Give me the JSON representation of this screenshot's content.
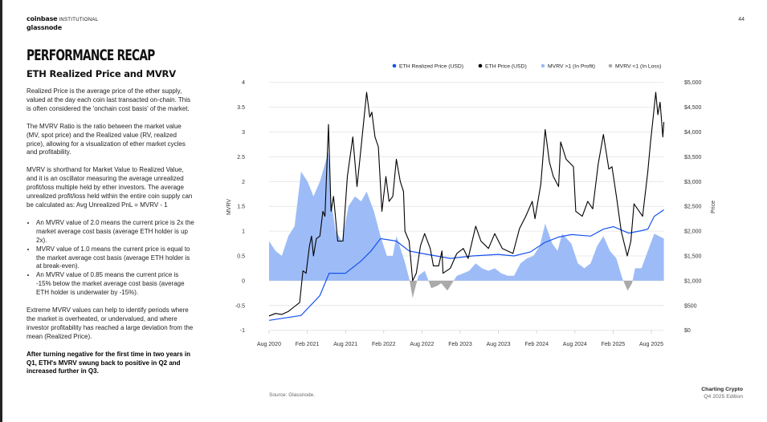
{
  "header": {
    "logo_coinbase": "coinbase",
    "logo_institutional": "INSTITUTIONAL",
    "logo_glassnode": "glassnode",
    "page_number": "44"
  },
  "section_title": "PERFORMANCE RECAP",
  "subtitle": "ETH Realized Price and MVRV",
  "body": {
    "p1": "Realized Price is the average price of the ether supply, valued at the day each coin last transacted on-chain. This is often considered the 'onchain cost basis' of the market.",
    "p2": "The MVRV Ratio is the ratio between the market value (MV, spot price) and the Realized value (RV, realized price), allowing for a visualization of ether market cycles and profitability.",
    "p3": "MVRV is shorthand for Market Value to Realized Value, and it is an oscillator measuring the average unrealized profit/loss multiple held by ether investors. The average unrealized profit/loss held within the entire coin supply can be calculated as: Avg Unrealized PnL = MVRV - 1",
    "bullets": [
      "An MVRV value of 2.0 means the current price is 2x the market average cost basis (average ETH holder is up 2x).",
      "MVRV value of 1.0 means the current price is equal to the market average cost basis (average ETH holder is at break-even).",
      "An MVRV value of 0.85 means the current price is -15% below the market average cost basis (average ETH holder is underwater by -15%)."
    ],
    "p4": "Extreme MVRV values can help to identify periods where the market is overheated, or undervalued, and where investor profitability has reached a large deviation from the mean (Realized Price).",
    "conclusion": "After turning negative for the first time in two years in Q1, ETH's MVRV swung back to positive in Q2 and increased further in Q3."
  },
  "footer": {
    "source": "Source: Glassnode.",
    "brand": "Charting Crypto",
    "edition": "Q4 2025 Edition"
  },
  "chart_data": {
    "type": "line",
    "title": "",
    "ylabel": "MVRV",
    "y2label": "Price",
    "ylim": [
      -1,
      4
    ],
    "y2lim": [
      0,
      5000
    ],
    "yticks": [
      "4",
      "3.5",
      "3",
      "2.5",
      "2",
      "1.5",
      "1",
      "0.5",
      "0",
      "-0.5",
      "-1"
    ],
    "y2ticks": [
      "$5,000",
      "$4,500",
      "$4,000",
      "$3,500",
      "$3,000",
      "$2,500",
      "$2,000",
      "$1,500",
      "$1,000",
      "$500",
      "$0"
    ],
    "xticks": [
      "Aug 2020",
      "Feb 2021",
      "Aug 2021",
      "Feb 2022",
      "Aug 2022",
      "Feb 2023",
      "Aug 2023",
      "Feb 2024",
      "Aug 2024",
      "Feb 2025",
      "Aug 2025"
    ],
    "xlim": [
      "2020-08-01",
      "2025-10-01"
    ],
    "grid": true,
    "legend_position": "top-right",
    "legend": [
      {
        "name": "ETH Realized Price (USD)",
        "color": "#1652f0"
      },
      {
        "name": "ETH Price (USD)",
        "color": "#000000"
      },
      {
        "name": "MVRV >1 (In Profit)",
        "color": "#9dbcf7"
      },
      {
        "name": "MVRV <1 (In Loss)",
        "color": "#aaaaaa"
      }
    ],
    "series": [
      {
        "name": "ETH Price (USD)",
        "axis": "right",
        "points": [
          [
            "2020-08-01",
            290
          ],
          [
            "2020-09-01",
            340
          ],
          [
            "2020-10-01",
            320
          ],
          [
            "2020-11-01",
            380
          ],
          [
            "2020-12-01",
            480
          ],
          [
            "2020-12-25",
            560
          ],
          [
            "2021-01-10",
            1200
          ],
          [
            "2021-01-25",
            1150
          ],
          [
            "2021-02-10",
            1700
          ],
          [
            "2021-02-20",
            1900
          ],
          [
            "2021-03-01",
            1500
          ],
          [
            "2021-03-15",
            1850
          ],
          [
            "2021-04-01",
            1900
          ],
          [
            "2021-04-15",
            2400
          ],
          [
            "2021-04-25",
            2300
          ],
          [
            "2021-05-12",
            4150
          ],
          [
            "2021-05-24",
            2400
          ],
          [
            "2021-06-05",
            2700
          ],
          [
            "2021-06-25",
            1800
          ],
          [
            "2021-07-20",
            1800
          ],
          [
            "2021-08-10",
            3100
          ],
          [
            "2021-09-05",
            3900
          ],
          [
            "2021-09-25",
            2900
          ],
          [
            "2021-10-10",
            3500
          ],
          [
            "2021-11-10",
            4800
          ],
          [
            "2021-11-25",
            4300
          ],
          [
            "2021-12-05",
            4400
          ],
          [
            "2021-12-20",
            3900
          ],
          [
            "2022-01-05",
            3700
          ],
          [
            "2022-01-22",
            2400
          ],
          [
            "2022-02-10",
            3100
          ],
          [
            "2022-02-25",
            2600
          ],
          [
            "2022-03-15",
            2700
          ],
          [
            "2022-04-01",
            3450
          ],
          [
            "2022-04-20",
            3000
          ],
          [
            "2022-05-05",
            2800
          ],
          [
            "2022-05-12",
            2000
          ],
          [
            "2022-06-01",
            1800
          ],
          [
            "2022-06-18",
            1000
          ],
          [
            "2022-07-05",
            1150
          ],
          [
            "2022-07-25",
            1700
          ],
          [
            "2022-08-14",
            1950
          ],
          [
            "2022-09-10",
            1650
          ],
          [
            "2022-09-25",
            1300
          ],
          [
            "2022-10-20",
            1300
          ],
          [
            "2022-11-05",
            1600
          ],
          [
            "2022-11-10",
            1150
          ],
          [
            "2022-12-15",
            1250
          ],
          [
            "2023-01-15",
            1550
          ],
          [
            "2023-02-15",
            1650
          ],
          [
            "2023-03-10",
            1450
          ],
          [
            "2023-04-15",
            2100
          ],
          [
            "2023-05-10",
            1800
          ],
          [
            "2023-06-15",
            1650
          ],
          [
            "2023-07-15",
            1950
          ],
          [
            "2023-08-20",
            1650
          ],
          [
            "2023-10-10",
            1550
          ],
          [
            "2023-11-10",
            2050
          ],
          [
            "2023-12-10",
            2300
          ],
          [
            "2024-01-10",
            2600
          ],
          [
            "2024-01-23",
            2250
          ],
          [
            "2024-02-20",
            2950
          ],
          [
            "2024-03-12",
            4050
          ],
          [
            "2024-04-01",
            3400
          ],
          [
            "2024-04-20",
            3100
          ],
          [
            "2024-05-15",
            2900
          ],
          [
            "2024-05-25",
            3800
          ],
          [
            "2024-06-20",
            3450
          ],
          [
            "2024-07-25",
            3300
          ],
          [
            "2024-08-05",
            2400
          ],
          [
            "2024-09-05",
            2300
          ],
          [
            "2024-10-01",
            2600
          ],
          [
            "2024-10-25",
            2450
          ],
          [
            "2024-11-20",
            3350
          ],
          [
            "2024-12-15",
            3950
          ],
          [
            "2025-01-10",
            3250
          ],
          [
            "2025-01-25",
            3300
          ],
          [
            "2025-02-15",
            2700
          ],
          [
            "2025-03-10",
            2000
          ],
          [
            "2025-04-08",
            1500
          ],
          [
            "2025-04-25",
            1800
          ],
          [
            "2025-05-10",
            2550
          ],
          [
            "2025-06-20",
            2300
          ],
          [
            "2025-07-15",
            3200
          ],
          [
            "2025-07-28",
            3800
          ],
          [
            "2025-08-10",
            4300
          ],
          [
            "2025-08-22",
            4800
          ],
          [
            "2025-09-01",
            4350
          ],
          [
            "2025-09-12",
            4600
          ],
          [
            "2025-09-25",
            3900
          ],
          [
            "2025-09-30",
            4200
          ]
        ]
      },
      {
        "name": "ETH Realized Price (USD)",
        "axis": "right",
        "points": [
          [
            "2020-08-01",
            200
          ],
          [
            "2021-01-01",
            300
          ],
          [
            "2021-04-01",
            700
          ],
          [
            "2021-05-15",
            1150
          ],
          [
            "2021-08-01",
            1150
          ],
          [
            "2021-10-15",
            1400
          ],
          [
            "2021-12-01",
            1600
          ],
          [
            "2022-01-15",
            1850
          ],
          [
            "2022-04-01",
            1800
          ],
          [
            "2022-06-01",
            1600
          ],
          [
            "2022-08-01",
            1550
          ],
          [
            "2022-12-15",
            1450
          ],
          [
            "2023-04-01",
            1500
          ],
          [
            "2023-08-01",
            1530
          ],
          [
            "2023-10-15",
            1500
          ],
          [
            "2024-01-01",
            1580
          ],
          [
            "2024-03-10",
            1770
          ],
          [
            "2024-05-15",
            1880
          ],
          [
            "2024-07-15",
            1930
          ],
          [
            "2024-10-15",
            1900
          ],
          [
            "2024-12-15",
            2040
          ],
          [
            "2025-02-01",
            2090
          ],
          [
            "2025-04-15",
            1960
          ],
          [
            "2025-06-15",
            2010
          ],
          [
            "2025-07-15",
            2040
          ],
          [
            "2025-08-15",
            2300
          ],
          [
            "2025-09-30",
            2430
          ]
        ]
      },
      {
        "name": "MVRV",
        "axis": "left",
        "points": [
          [
            "2020-08-01",
            0.8
          ],
          [
            "2020-09-01",
            0.6
          ],
          [
            "2020-10-01",
            0.5
          ],
          [
            "2020-11-01",
            0.9
          ],
          [
            "2020-12-01",
            1.1
          ],
          [
            "2021-01-01",
            2.2
          ],
          [
            "2021-02-01",
            2.0
          ],
          [
            "2021-03-01",
            1.7
          ],
          [
            "2021-04-01",
            2.0
          ],
          [
            "2021-05-12",
            2.6
          ],
          [
            "2021-05-25",
            1.6
          ],
          [
            "2021-06-15",
            1.0
          ],
          [
            "2021-07-15",
            0.8
          ],
          [
            "2021-08-15",
            1.5
          ],
          [
            "2021-09-15",
            1.7
          ],
          [
            "2021-10-15",
            1.6
          ],
          [
            "2021-11-10",
            1.8
          ],
          [
            "2021-12-15",
            1.4
          ],
          [
            "2022-01-15",
            0.9
          ],
          [
            "2022-02-15",
            0.5
          ],
          [
            "2022-03-15",
            0.5
          ],
          [
            "2022-04-01",
            0.9
          ],
          [
            "2022-05-10",
            0.4
          ],
          [
            "2022-06-01",
            0.05
          ],
          [
            "2022-06-18",
            -0.35
          ],
          [
            "2022-07-15",
            0.1
          ],
          [
            "2022-08-15",
            0.2
          ],
          [
            "2022-09-15",
            -0.15
          ],
          [
            "2022-10-15",
            -0.1
          ],
          [
            "2022-11-01",
            -0.05
          ],
          [
            "2022-12-01",
            -0.2
          ],
          [
            "2023-01-15",
            0.1
          ],
          [
            "2023-02-15",
            0.15
          ],
          [
            "2023-03-15",
            0.2
          ],
          [
            "2023-04-15",
            0.35
          ],
          [
            "2023-05-15",
            0.25
          ],
          [
            "2023-06-15",
            0.2
          ],
          [
            "2023-07-15",
            0.25
          ],
          [
            "2023-08-15",
            0.15
          ],
          [
            "2023-09-15",
            0.1
          ],
          [
            "2023-10-15",
            0.1
          ],
          [
            "2023-11-15",
            0.35
          ],
          [
            "2023-12-15",
            0.45
          ],
          [
            "2024-01-15",
            0.5
          ],
          [
            "2024-02-15",
            0.7
          ],
          [
            "2024-03-12",
            1.15
          ],
          [
            "2024-04-15",
            0.75
          ],
          [
            "2024-05-10",
            0.6
          ],
          [
            "2024-06-01",
            0.95
          ],
          [
            "2024-07-15",
            0.75
          ],
          [
            "2024-08-15",
            0.35
          ],
          [
            "2024-09-15",
            0.25
          ],
          [
            "2024-10-15",
            0.35
          ],
          [
            "2024-11-15",
            0.7
          ],
          [
            "2024-12-15",
            0.9
          ],
          [
            "2025-01-15",
            0.6
          ],
          [
            "2025-02-15",
            0.45
          ],
          [
            "2025-03-15",
            0.05
          ],
          [
            "2025-04-10",
            -0.2
          ],
          [
            "2025-05-01",
            -0.05
          ],
          [
            "2025-05-15",
            0.25
          ],
          [
            "2025-06-15",
            0.25
          ],
          [
            "2025-07-15",
            0.6
          ],
          [
            "2025-08-15",
            0.95
          ],
          [
            "2025-09-30",
            0.85
          ]
        ]
      }
    ]
  }
}
